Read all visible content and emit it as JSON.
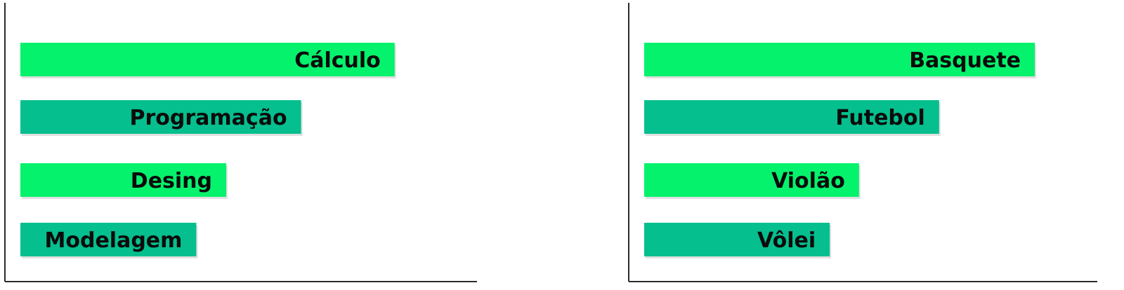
{
  "chart_data": [
    {
      "type": "bar",
      "orientation": "horizontal",
      "categories": [
        "Cálculo",
        "Programação",
        "Desing",
        "Modelagem"
      ],
      "values": [
        10,
        7.5,
        5.5,
        4.7
      ],
      "xlim": [
        0,
        12.2
      ],
      "grid": false,
      "title": "",
      "xlabel": "",
      "ylabel": "",
      "colors": [
        "#05f26c",
        "#05bf8e",
        "#05f26c",
        "#05bf8e"
      ]
    },
    {
      "type": "bar",
      "orientation": "horizontal",
      "categories": [
        "Basquete",
        "Futebol",
        "Violão",
        "Vôlei"
      ],
      "values": [
        10,
        7.55,
        5.5,
        4.75
      ],
      "xlim": [
        0,
        11.6
      ],
      "grid": false,
      "title": "",
      "xlabel": "",
      "ylabel": "",
      "colors": [
        "#05f26c",
        "#05bf8e",
        "#05f26c",
        "#05bf8e"
      ]
    }
  ]
}
